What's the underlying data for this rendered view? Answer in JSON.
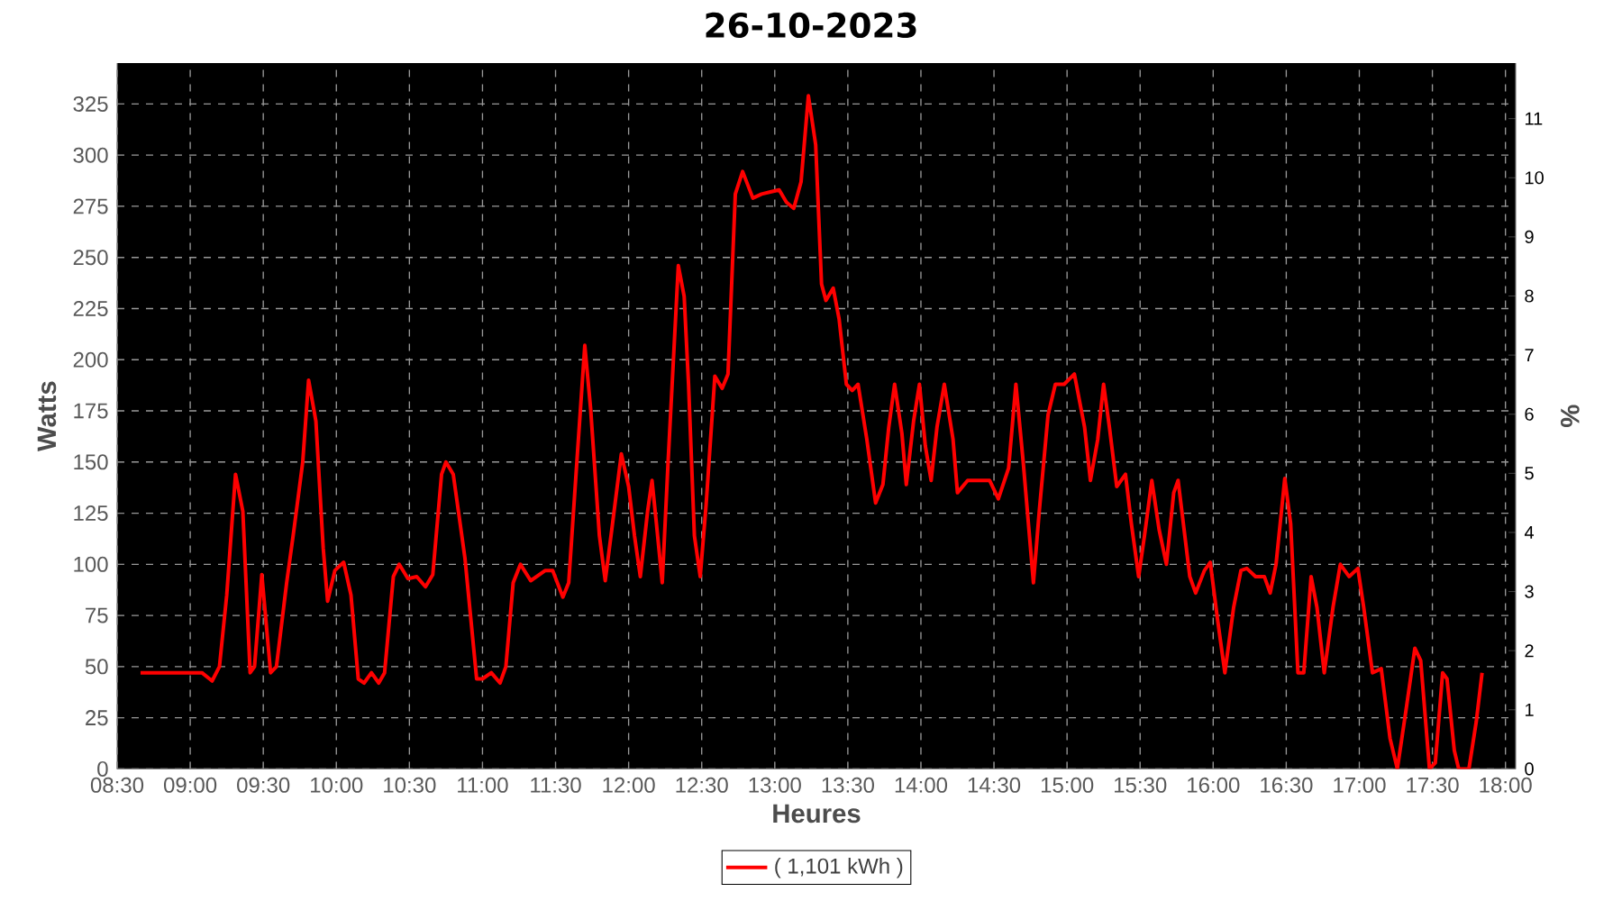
{
  "chart_data": {
    "type": "line",
    "title": "26-10-2023",
    "xlabel": "Heures",
    "ylabel": "Watts",
    "y2label": "%",
    "xlim": [
      8.5,
      18.07
    ],
    "ylim": [
      0,
      345
    ],
    "y2lim": [
      0,
      11.94
    ],
    "xticks": [
      {
        "value": 8.5,
        "label": "08:30"
      },
      {
        "value": 9,
        "label": "09:00"
      },
      {
        "value": 9.5,
        "label": "09:30"
      },
      {
        "value": 10,
        "label": "10:00"
      },
      {
        "value": 10.5,
        "label": "10:30"
      },
      {
        "value": 11,
        "label": "11:00"
      },
      {
        "value": 11.5,
        "label": "11:30"
      },
      {
        "value": 12,
        "label": "12:00"
      },
      {
        "value": 12.5,
        "label": "12:30"
      },
      {
        "value": 13,
        "label": "13:00"
      },
      {
        "value": 13.5,
        "label": "13:30"
      },
      {
        "value": 14,
        "label": "14:00"
      },
      {
        "value": 14.5,
        "label": "14:30"
      },
      {
        "value": 15,
        "label": "15:00"
      },
      {
        "value": 15.5,
        "label": "15:30"
      },
      {
        "value": 16,
        "label": "16:00"
      },
      {
        "value": 16.5,
        "label": "16:30"
      },
      {
        "value": 17,
        "label": "17:00"
      },
      {
        "value": 17.5,
        "label": "17:30"
      },
      {
        "value": 18,
        "label": "18:00"
      }
    ],
    "yticks": [
      0,
      25,
      50,
      75,
      100,
      125,
      150,
      175,
      200,
      225,
      250,
      275,
      300,
      325
    ],
    "y2ticks": [
      0,
      1,
      2,
      3,
      4,
      5,
      6,
      7,
      8,
      9,
      10,
      11
    ],
    "grid": true,
    "legend": "bottom",
    "marker": "none",
    "line_style": "solid",
    "series": [
      {
        "name": "( 1,101 kWh )",
        "color": "#ff0000",
        "x": [
          8.66,
          9.0,
          9.08,
          9.15,
          9.2,
          9.25,
          9.31,
          9.36,
          9.41,
          9.44,
          9.49,
          9.55,
          9.59,
          9.66,
          9.71,
          9.77,
          9.81,
          9.86,
          9.91,
          9.94,
          9.99,
          10.05,
          10.1,
          10.15,
          10.19,
          10.24,
          10.29,
          10.33,
          10.39,
          10.43,
          10.49,
          10.55,
          10.61,
          10.66,
          10.72,
          10.75,
          10.8,
          10.88,
          10.96,
          11.0,
          11.06,
          11.12,
          11.16,
          11.21,
          11.26,
          11.33,
          11.43,
          11.48,
          11.55,
          11.59,
          11.64,
          11.7,
          11.74,
          11.8,
          11.84,
          11.89,
          11.95,
          12.0,
          12.04,
          12.08,
          12.13,
          12.16,
          12.19,
          12.23,
          12.27,
          12.34,
          12.38,
          12.41,
          12.45,
          12.49,
          12.53,
          12.59,
          12.64,
          12.68,
          12.73,
          12.78,
          12.85,
          12.91,
          12.97,
          13.03,
          13.08,
          13.13,
          13.18,
          13.23,
          13.28,
          13.32,
          13.35,
          13.4,
          13.44,
          13.49,
          13.53,
          13.57,
          13.63,
          13.69,
          13.74,
          13.78,
          13.82,
          13.87,
          13.9,
          13.95,
          13.99,
          14.03,
          14.07,
          14.11,
          14.16,
          14.22,
          14.25,
          14.32,
          14.4,
          14.47,
          14.53,
          14.6,
          14.65,
          14.7,
          14.77,
          14.81,
          14.87,
          14.92,
          14.98,
          15.05,
          15.12,
          15.16,
          15.21,
          15.25,
          15.29,
          15.34,
          15.4,
          15.44,
          15.49,
          15.53,
          15.58,
          15.63,
          15.68,
          15.73,
          15.76,
          15.84,
          15.88,
          15.94,
          15.98,
          16.03,
          16.08,
          16.14,
          16.19,
          16.23,
          16.29,
          16.35,
          16.39,
          16.43,
          16.49,
          16.53,
          16.58,
          16.62,
          16.67,
          16.71,
          16.76,
          16.82,
          16.87,
          16.93,
          16.99,
          17.03,
          17.09,
          17.15,
          17.21,
          17.26,
          17.32,
          17.38,
          17.42,
          17.48,
          17.52,
          17.57,
          17.6,
          17.65,
          17.68,
          17.75,
          17.8,
          17.84
        ],
        "values": [
          47,
          47,
          47,
          43,
          50,
          85,
          144,
          126,
          47,
          50,
          95,
          47,
          50,
          91,
          117,
          150,
          190,
          170,
          108,
          82,
          97,
          101,
          85,
          44,
          42,
          47,
          42,
          47,
          94,
          100,
          93,
          94,
          89,
          95,
          144,
          150,
          144,
          103,
          44,
          44,
          47,
          42,
          50,
          91,
          100,
          92,
          97,
          97,
          84,
          91,
          144,
          207,
          176,
          114,
          92,
          120,
          154,
          138,
          114,
          94,
          126,
          141,
          120,
          91,
          150,
          246,
          231,
          188,
          114,
          94,
          129,
          192,
          186,
          193,
          281,
          292,
          279,
          281,
          282,
          283,
          277,
          274,
          287,
          329,
          305,
          237,
          229,
          235,
          220,
          188,
          185,
          188,
          161,
          130,
          139,
          167,
          188,
          164,
          139,
          170,
          188,
          158,
          141,
          167,
          188,
          161,
          135,
          141,
          141,
          141,
          132,
          147,
          188,
          150,
          91,
          126,
          173,
          188,
          188,
          193,
          167,
          141,
          161,
          188,
          167,
          138,
          144,
          120,
          94,
          114,
          141,
          117,
          100,
          135,
          141,
          94,
          86,
          97,
          101,
          73,
          47,
          79,
          97,
          98,
          94,
          94,
          86,
          100,
          142,
          120,
          47,
          47,
          94,
          79,
          47,
          79,
          100,
          94,
          98,
          79,
          47,
          49,
          15,
          0,
          29,
          59,
          53,
          0,
          3,
          47,
          44,
          9,
          0,
          0,
          23,
          47
        ]
      }
    ]
  }
}
